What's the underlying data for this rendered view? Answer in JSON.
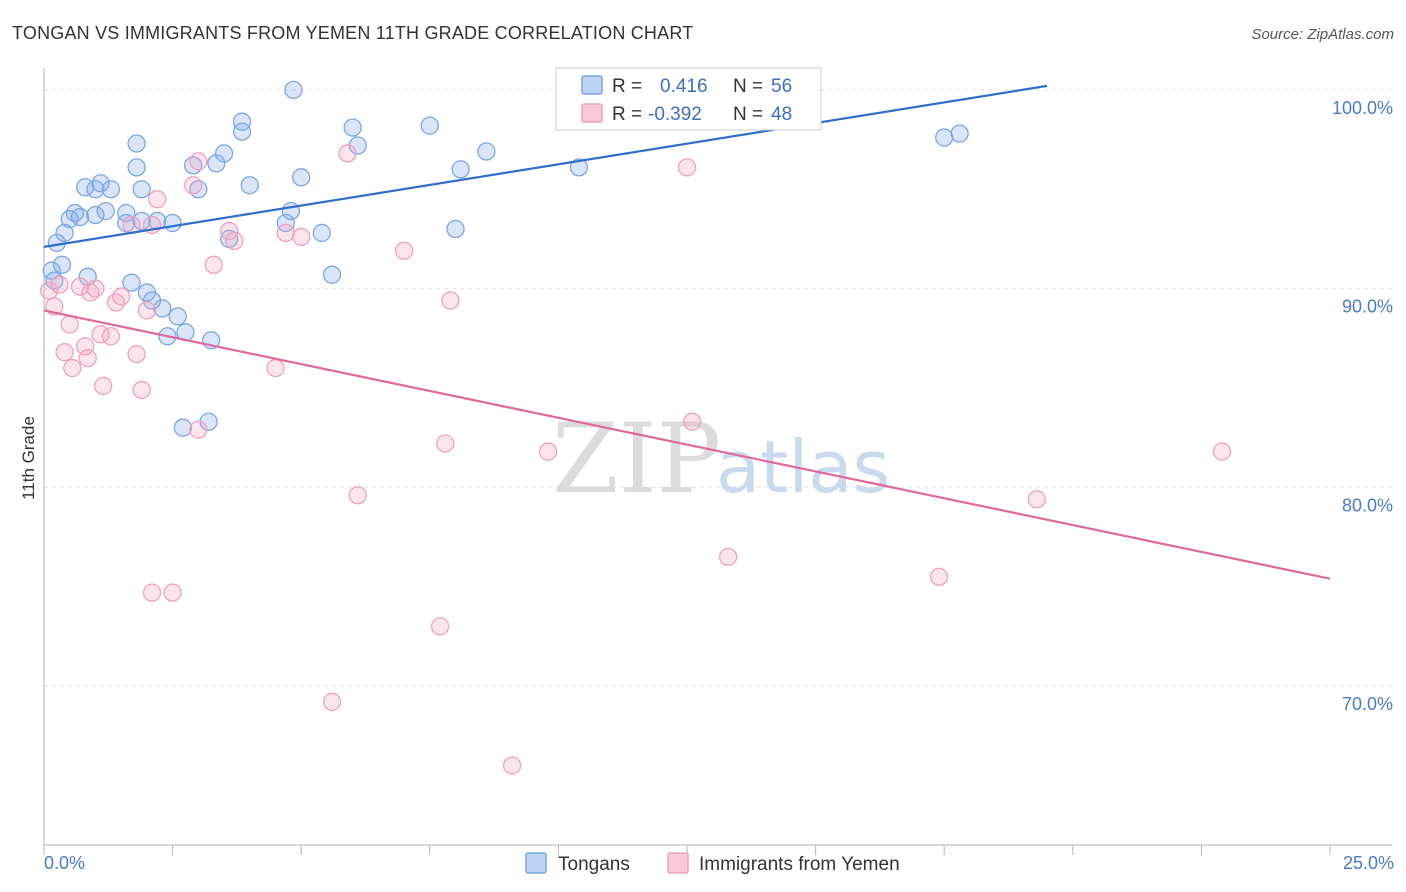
{
  "chart_data": {
    "type": "scatter",
    "title": "TONGAN VS IMMIGRANTS FROM YEMEN 11TH GRADE CORRELATION CHART",
    "source": "Source: ZipAtlas.com",
    "xlabel": "",
    "ylabel": "11th Grade",
    "xlim": [
      0,
      25
    ],
    "ylim": [
      62,
      101
    ],
    "x_tick_labels": [
      "0.0%",
      "25.0%"
    ],
    "y_ticks": [
      70,
      80,
      90,
      100
    ],
    "y_tick_labels": [
      "70.0%",
      "80.0%",
      "90.0%",
      "100.0%"
    ],
    "watermark": {
      "part1": "ZIP",
      "part2": "atlas"
    },
    "legend": {
      "rows": [
        {
          "r_label": "R =",
          "r_value": "0.416",
          "n_label": "N =",
          "n_value": "56"
        },
        {
          "r_label": "R =",
          "r_value": "-0.392",
          "n_label": "N =",
          "n_value": "48"
        }
      ]
    },
    "series": [
      {
        "name": "Tongans",
        "color": "#7aa7e6",
        "line_color": "#2f6fcc",
        "trend": {
          "x": [
            0,
            19.5
          ],
          "y": [
            92.1,
            100.2
          ]
        },
        "points": [
          [
            0.15,
            90.9
          ],
          [
            0.2,
            90.4
          ],
          [
            0.35,
            91.2
          ],
          [
            0.25,
            92.3
          ],
          [
            0.4,
            92.8
          ],
          [
            0.5,
            93.5
          ],
          [
            0.6,
            93.8
          ],
          [
            0.7,
            93.6
          ],
          [
            0.8,
            95.1
          ],
          [
            0.85,
            90.6
          ],
          [
            1.0,
            95.0
          ],
          [
            1.0,
            93.7
          ],
          [
            1.1,
            95.3
          ],
          [
            1.2,
            93.9
          ],
          [
            1.3,
            95.0
          ],
          [
            1.6,
            93.3
          ],
          [
            1.6,
            93.8
          ],
          [
            1.7,
            90.3
          ],
          [
            1.8,
            96.1
          ],
          [
            1.8,
            97.3
          ],
          [
            1.9,
            95.0
          ],
          [
            2.0,
            89.8
          ],
          [
            2.1,
            89.4
          ],
          [
            2.2,
            93.4
          ],
          [
            2.3,
            89.0
          ],
          [
            2.4,
            87.6
          ],
          [
            2.5,
            93.3
          ],
          [
            2.6,
            88.6
          ],
          [
            2.7,
            83.0
          ],
          [
            2.75,
            87.8
          ],
          [
            2.9,
            96.2
          ],
          [
            3.0,
            95.0
          ],
          [
            3.2,
            83.3
          ],
          [
            3.25,
            87.4
          ],
          [
            3.35,
            96.3
          ],
          [
            3.5,
            96.8
          ],
          [
            3.6,
            92.5
          ],
          [
            3.85,
            98.4
          ],
          [
            3.85,
            97.9
          ],
          [
            4.0,
            95.2
          ],
          [
            4.7,
            93.3
          ],
          [
            4.8,
            93.9
          ],
          [
            4.85,
            100.0
          ],
          [
            5.0,
            95.6
          ],
          [
            5.4,
            92.8
          ],
          [
            5.6,
            90.7
          ],
          [
            6.0,
            98.1
          ],
          [
            6.1,
            97.2
          ],
          [
            7.5,
            98.2
          ],
          [
            8.0,
            93.0
          ],
          [
            8.1,
            96.0
          ],
          [
            8.6,
            96.9
          ],
          [
            10.4,
            96.1
          ],
          [
            17.5,
            97.6
          ],
          [
            17.8,
            97.8
          ],
          [
            1.9,
            93.4
          ]
        ]
      },
      {
        "name": "Immigrants from Yemen",
        "color": "#f0a0bf",
        "line_color": "#e0689a",
        "trend": {
          "x": [
            0,
            25
          ],
          "y": [
            88.9,
            75.4
          ]
        },
        "points": [
          [
            0.1,
            89.9
          ],
          [
            0.2,
            89.1
          ],
          [
            0.3,
            90.2
          ],
          [
            0.4,
            86.8
          ],
          [
            0.5,
            88.2
          ],
          [
            0.55,
            86.0
          ],
          [
            0.7,
            90.1
          ],
          [
            0.8,
            87.1
          ],
          [
            0.85,
            86.5
          ],
          [
            0.9,
            89.8
          ],
          [
            1.0,
            90.0
          ],
          [
            1.1,
            87.7
          ],
          [
            1.15,
            85.1
          ],
          [
            1.3,
            87.6
          ],
          [
            1.4,
            89.3
          ],
          [
            1.5,
            89.6
          ],
          [
            1.7,
            93.2
          ],
          [
            1.8,
            86.7
          ],
          [
            1.9,
            84.9
          ],
          [
            2.0,
            88.9
          ],
          [
            2.1,
            93.2
          ],
          [
            2.2,
            94.5
          ],
          [
            2.5,
            74.7
          ],
          [
            2.1,
            74.7
          ],
          [
            2.9,
            95.2
          ],
          [
            3.0,
            96.4
          ],
          [
            3.0,
            82.9
          ],
          [
            3.3,
            91.2
          ],
          [
            3.6,
            92.9
          ],
          [
            3.7,
            92.4
          ],
          [
            4.5,
            86.0
          ],
          [
            4.7,
            92.8
          ],
          [
            5.0,
            92.6
          ],
          [
            5.6,
            69.2
          ],
          [
            5.9,
            96.8
          ],
          [
            6.1,
            79.6
          ],
          [
            7.0,
            91.9
          ],
          [
            7.7,
            73.0
          ],
          [
            7.8,
            82.2
          ],
          [
            7.9,
            89.4
          ],
          [
            9.1,
            66.0
          ],
          [
            9.8,
            81.8
          ],
          [
            12.5,
            96.1
          ],
          [
            12.6,
            83.3
          ],
          [
            13.3,
            76.5
          ],
          [
            17.4,
            75.5
          ],
          [
            19.3,
            79.4
          ],
          [
            22.9,
            81.8
          ]
        ]
      }
    ]
  },
  "colors": {
    "grid": "#e2e2e2",
    "axis": "#b5b5b5",
    "legend_border": "#cccccc"
  }
}
